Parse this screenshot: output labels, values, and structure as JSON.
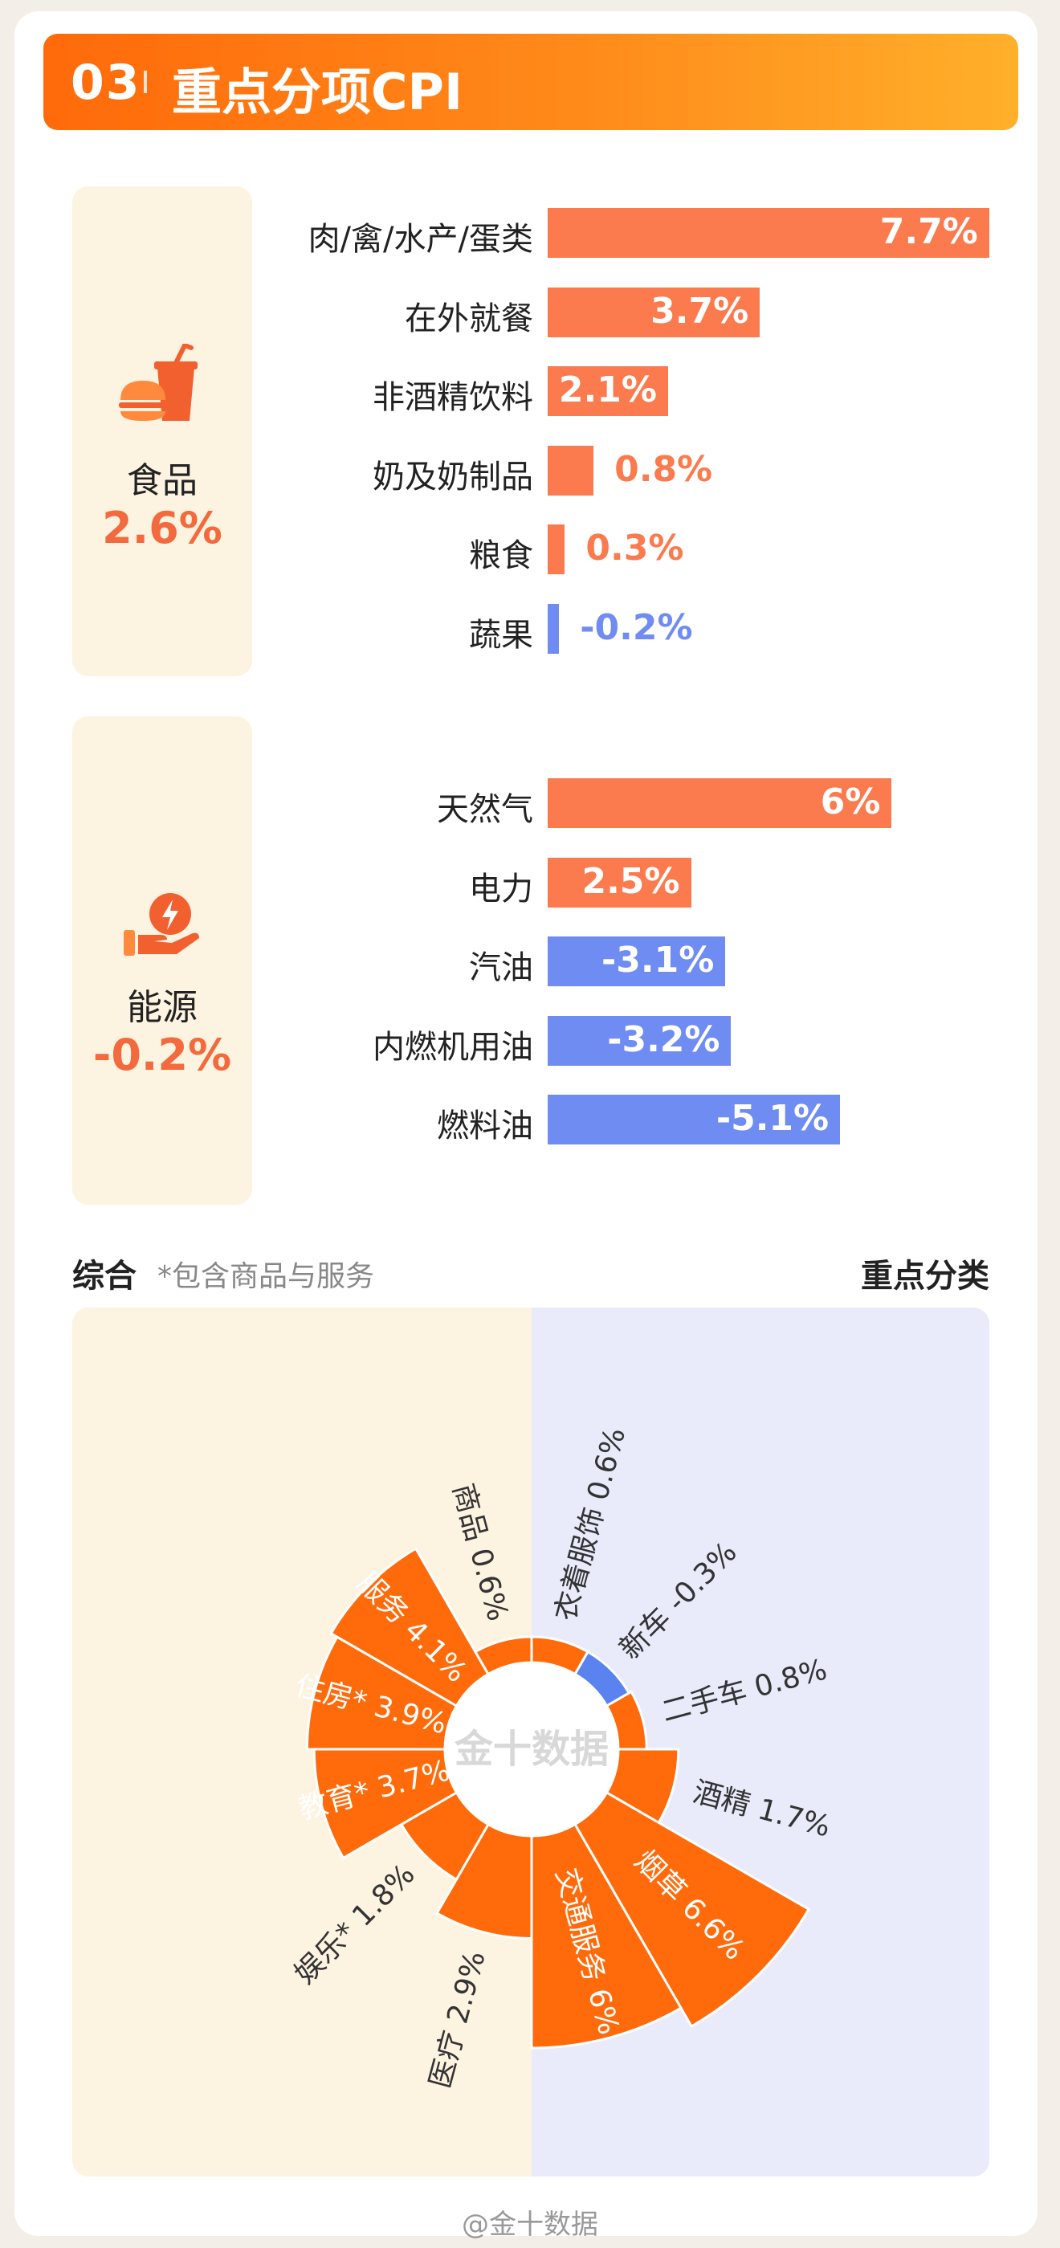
{
  "header": {
    "number": "03",
    "title": "重点分项CPI"
  },
  "colors": {
    "positive": "#fb7a4e",
    "negative": "#6f8cf2",
    "rose": "#ff6a0a",
    "rose_negative": "#5b83f0"
  },
  "food": {
    "icon": "burger-drink-icon",
    "label": "食品",
    "value": "2.6%",
    "items": [
      {
        "label": "肉/禽/水产/蛋类",
        "value": 7.7,
        "text": "7.7%"
      },
      {
        "label": "在外就餐",
        "value": 3.7,
        "text": "3.7%"
      },
      {
        "label": "非酒精饮料",
        "value": 2.1,
        "text": "2.1%"
      },
      {
        "label": "奶及奶制品",
        "value": 0.8,
        "text": "0.8%"
      },
      {
        "label": "粮食",
        "value": 0.3,
        "text": "0.3%"
      },
      {
        "label": "蔬果",
        "value": -0.2,
        "text": "-0.2%"
      }
    ]
  },
  "energy": {
    "icon": "hand-energy-icon",
    "label": "能源",
    "value": "-0.2%",
    "items": [
      {
        "label": "天然气",
        "value": 6,
        "text": "6%"
      },
      {
        "label": "电力",
        "value": 2.5,
        "text": "2.5%"
      },
      {
        "label": "汽油",
        "value": -3.1,
        "text": "-3.1%"
      },
      {
        "label": "内燃机用油",
        "value": -3.2,
        "text": "-3.2%"
      },
      {
        "label": "燃料油",
        "value": -5.1,
        "text": "-5.1%"
      }
    ]
  },
  "composite": {
    "left_title": "综合",
    "left_note": "*包含商品与服务",
    "right_title": "重点分类",
    "watermark": "金十数据"
  },
  "chart_data": {
    "type": "rose",
    "slices": [
      {
        "label": "衣着服饰",
        "value": 0.6,
        "text": "0.6%"
      },
      {
        "label": "新车",
        "value": -0.3,
        "text": "-0.3%"
      },
      {
        "label": "二手车",
        "value": 0.8,
        "text": "0.8%"
      },
      {
        "label": "酒精",
        "value": 1.7,
        "text": "1.7%"
      },
      {
        "label": "烟草",
        "value": 6.6,
        "text": "6.6%"
      },
      {
        "label": "交通服务",
        "value": 6,
        "text": "6%"
      },
      {
        "label": "医疗",
        "value": 2.9,
        "text": "2.9%"
      },
      {
        "label": "娱乐*",
        "value": 1.8,
        "text": "1.8%"
      },
      {
        "label": "教育*",
        "value": 3.7,
        "text": "3.7%"
      },
      {
        "label": "住房*",
        "value": 3.9,
        "text": "3.9%"
      },
      {
        "label": "服务",
        "value": 4.1,
        "text": "4.1%"
      },
      {
        "label": "商品",
        "value": 0.6,
        "text": "0.6%"
      }
    ]
  },
  "footer": {
    "text": "@金十数据"
  }
}
